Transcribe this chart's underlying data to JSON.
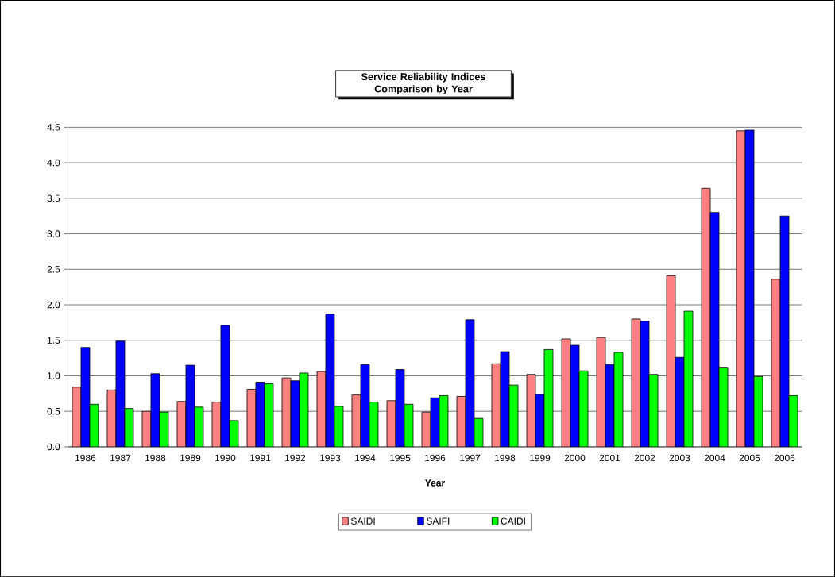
{
  "chart_data": {
    "type": "bar",
    "title": "Service Reliability Indices Comparison by Year",
    "xlabel": "Year",
    "categories": [
      "1986",
      "1987",
      "1988",
      "1989",
      "1990",
      "1991",
      "1992",
      "1993",
      "1994",
      "1995",
      "1996",
      "1997",
      "1998",
      "1999",
      "2000",
      "2001",
      "2002",
      "2003",
      "2004",
      "2005",
      "2006"
    ],
    "series": [
      {
        "name": "SAIDI",
        "color": "#ff8080",
        "values": [
          0.84,
          0.8,
          0.5,
          0.64,
          0.63,
          0.81,
          0.97,
          1.06,
          0.73,
          0.65,
          0.49,
          0.71,
          1.17,
          1.02,
          1.52,
          1.54,
          1.8,
          2.41,
          3.64,
          4.45,
          2.36
        ]
      },
      {
        "name": "SAIFI",
        "color": "#0000ff",
        "values": [
          1.4,
          1.49,
          1.03,
          1.15,
          1.71,
          0.91,
          0.93,
          1.87,
          1.16,
          1.09,
          0.69,
          1.79,
          1.34,
          0.74,
          1.43,
          1.16,
          1.77,
          1.26,
          3.3,
          4.46,
          3.25
        ]
      },
      {
        "name": "CAIDI",
        "color": "#00ff00",
        "values": [
          0.6,
          0.54,
          0.49,
          0.56,
          0.37,
          0.89,
          1.04,
          0.57,
          0.63,
          0.6,
          0.72,
          0.4,
          0.87,
          1.37,
          1.07,
          1.33,
          1.02,
          1.91,
          1.11,
          0.99,
          0.72
        ]
      }
    ],
    "ylim": [
      0,
      4.5
    ],
    "yticks": [
      {
        "value": 0,
        "label": "0.0"
      },
      {
        "value": 0.5,
        "label": "0.5"
      },
      {
        "value": 1,
        "label": "1.0"
      },
      {
        "value": 1.5,
        "label": "1.5"
      },
      {
        "value": 2,
        "label": "2.0"
      },
      {
        "value": 2.5,
        "label": "2.5"
      },
      {
        "value": 3,
        "label": "3.0"
      },
      {
        "value": 3.5,
        "label": "3.5"
      },
      {
        "value": 4,
        "label": "4.0"
      },
      {
        "value": 4.5,
        "label": "4.5"
      }
    ],
    "grid": "y",
    "legend": "bottom"
  }
}
